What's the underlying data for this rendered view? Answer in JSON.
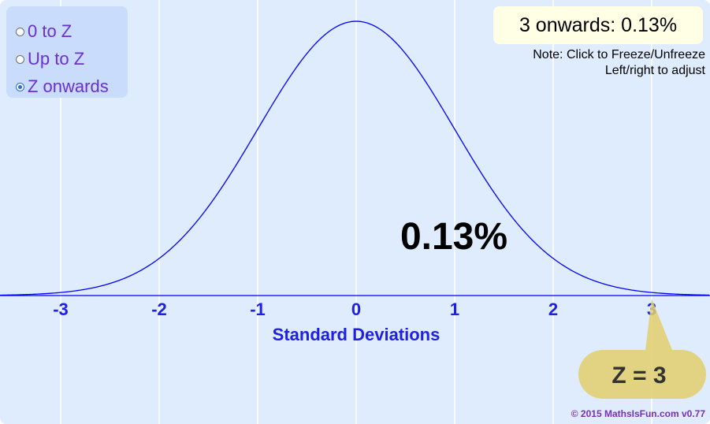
{
  "modes": [
    {
      "label": "0 to Z",
      "checked": false
    },
    {
      "label": "Up to Z",
      "checked": false
    },
    {
      "label": "Z onwards",
      "checked": true
    }
  ],
  "result": {
    "text": "3 onwards: 0.13%"
  },
  "note": {
    "line1": "Note: Click to Freeze/Unfreeze",
    "line2": "Left/right to adjust"
  },
  "chart_data": {
    "type": "line",
    "curve": "standard normal distribution",
    "xlabel": "Standard Deviations",
    "ticks": [
      "-3",
      "-2",
      "-1",
      "0",
      "1",
      "2",
      "3"
    ],
    "tick_values": [
      -3,
      -2,
      -1,
      0,
      1,
      2,
      3
    ],
    "xlim": [
      -3.6,
      3.6
    ],
    "grid": true,
    "area_label": "0.13%",
    "z_value": 3,
    "z_label": "Z = 3"
  },
  "colors": {
    "background": "#deecfd",
    "grid": "#ffffff",
    "curve": "#0000ff",
    "axis_text": "#2020e0",
    "area_label": "#000000",
    "z_bubble": "#e3cf6c",
    "z_bubble_text": "#333333"
  },
  "copyright": "© 2015 MathsIsFun.com v0.77"
}
